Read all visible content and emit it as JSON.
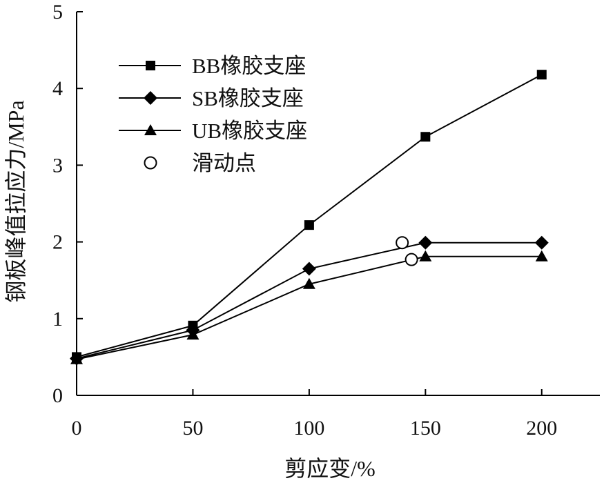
{
  "chart_data": {
    "type": "line",
    "xlabel": "剪应变/%",
    "ylabel": "钢板峰值拉应力/MPa",
    "xlim": [
      0,
      225
    ],
    "ylim": [
      0,
      5
    ],
    "xticks": [
      "0",
      "50",
      "100",
      "150",
      "200"
    ],
    "yticks": [
      "0",
      "1",
      "2",
      "3",
      "4",
      "5"
    ],
    "legend_position": "top-left",
    "series": [
      {
        "name": "BB橡胶支座",
        "marker": "square",
        "color": "#000000",
        "x": [
          0,
          50,
          100,
          150,
          200
        ],
        "y": [
          0.5,
          0.91,
          2.22,
          3.37,
          4.18
        ]
      },
      {
        "name": "SB橡胶支座",
        "marker": "diamond",
        "color": "#000000",
        "x": [
          0,
          50,
          100,
          150,
          200
        ],
        "y": [
          0.48,
          0.85,
          1.65,
          1.99,
          1.99
        ]
      },
      {
        "name": "UB橡胶支座",
        "marker": "triangle",
        "color": "#000000",
        "x": [
          0,
          50,
          100,
          150,
          200
        ],
        "y": [
          0.47,
          0.79,
          1.45,
          1.81,
          1.81
        ]
      }
    ],
    "annotations": [
      {
        "name": "滑动点",
        "marker": "open-circle",
        "points": [
          {
            "x": 140,
            "y": 1.99
          },
          {
            "x": 144,
            "y": 1.77
          }
        ]
      }
    ]
  }
}
